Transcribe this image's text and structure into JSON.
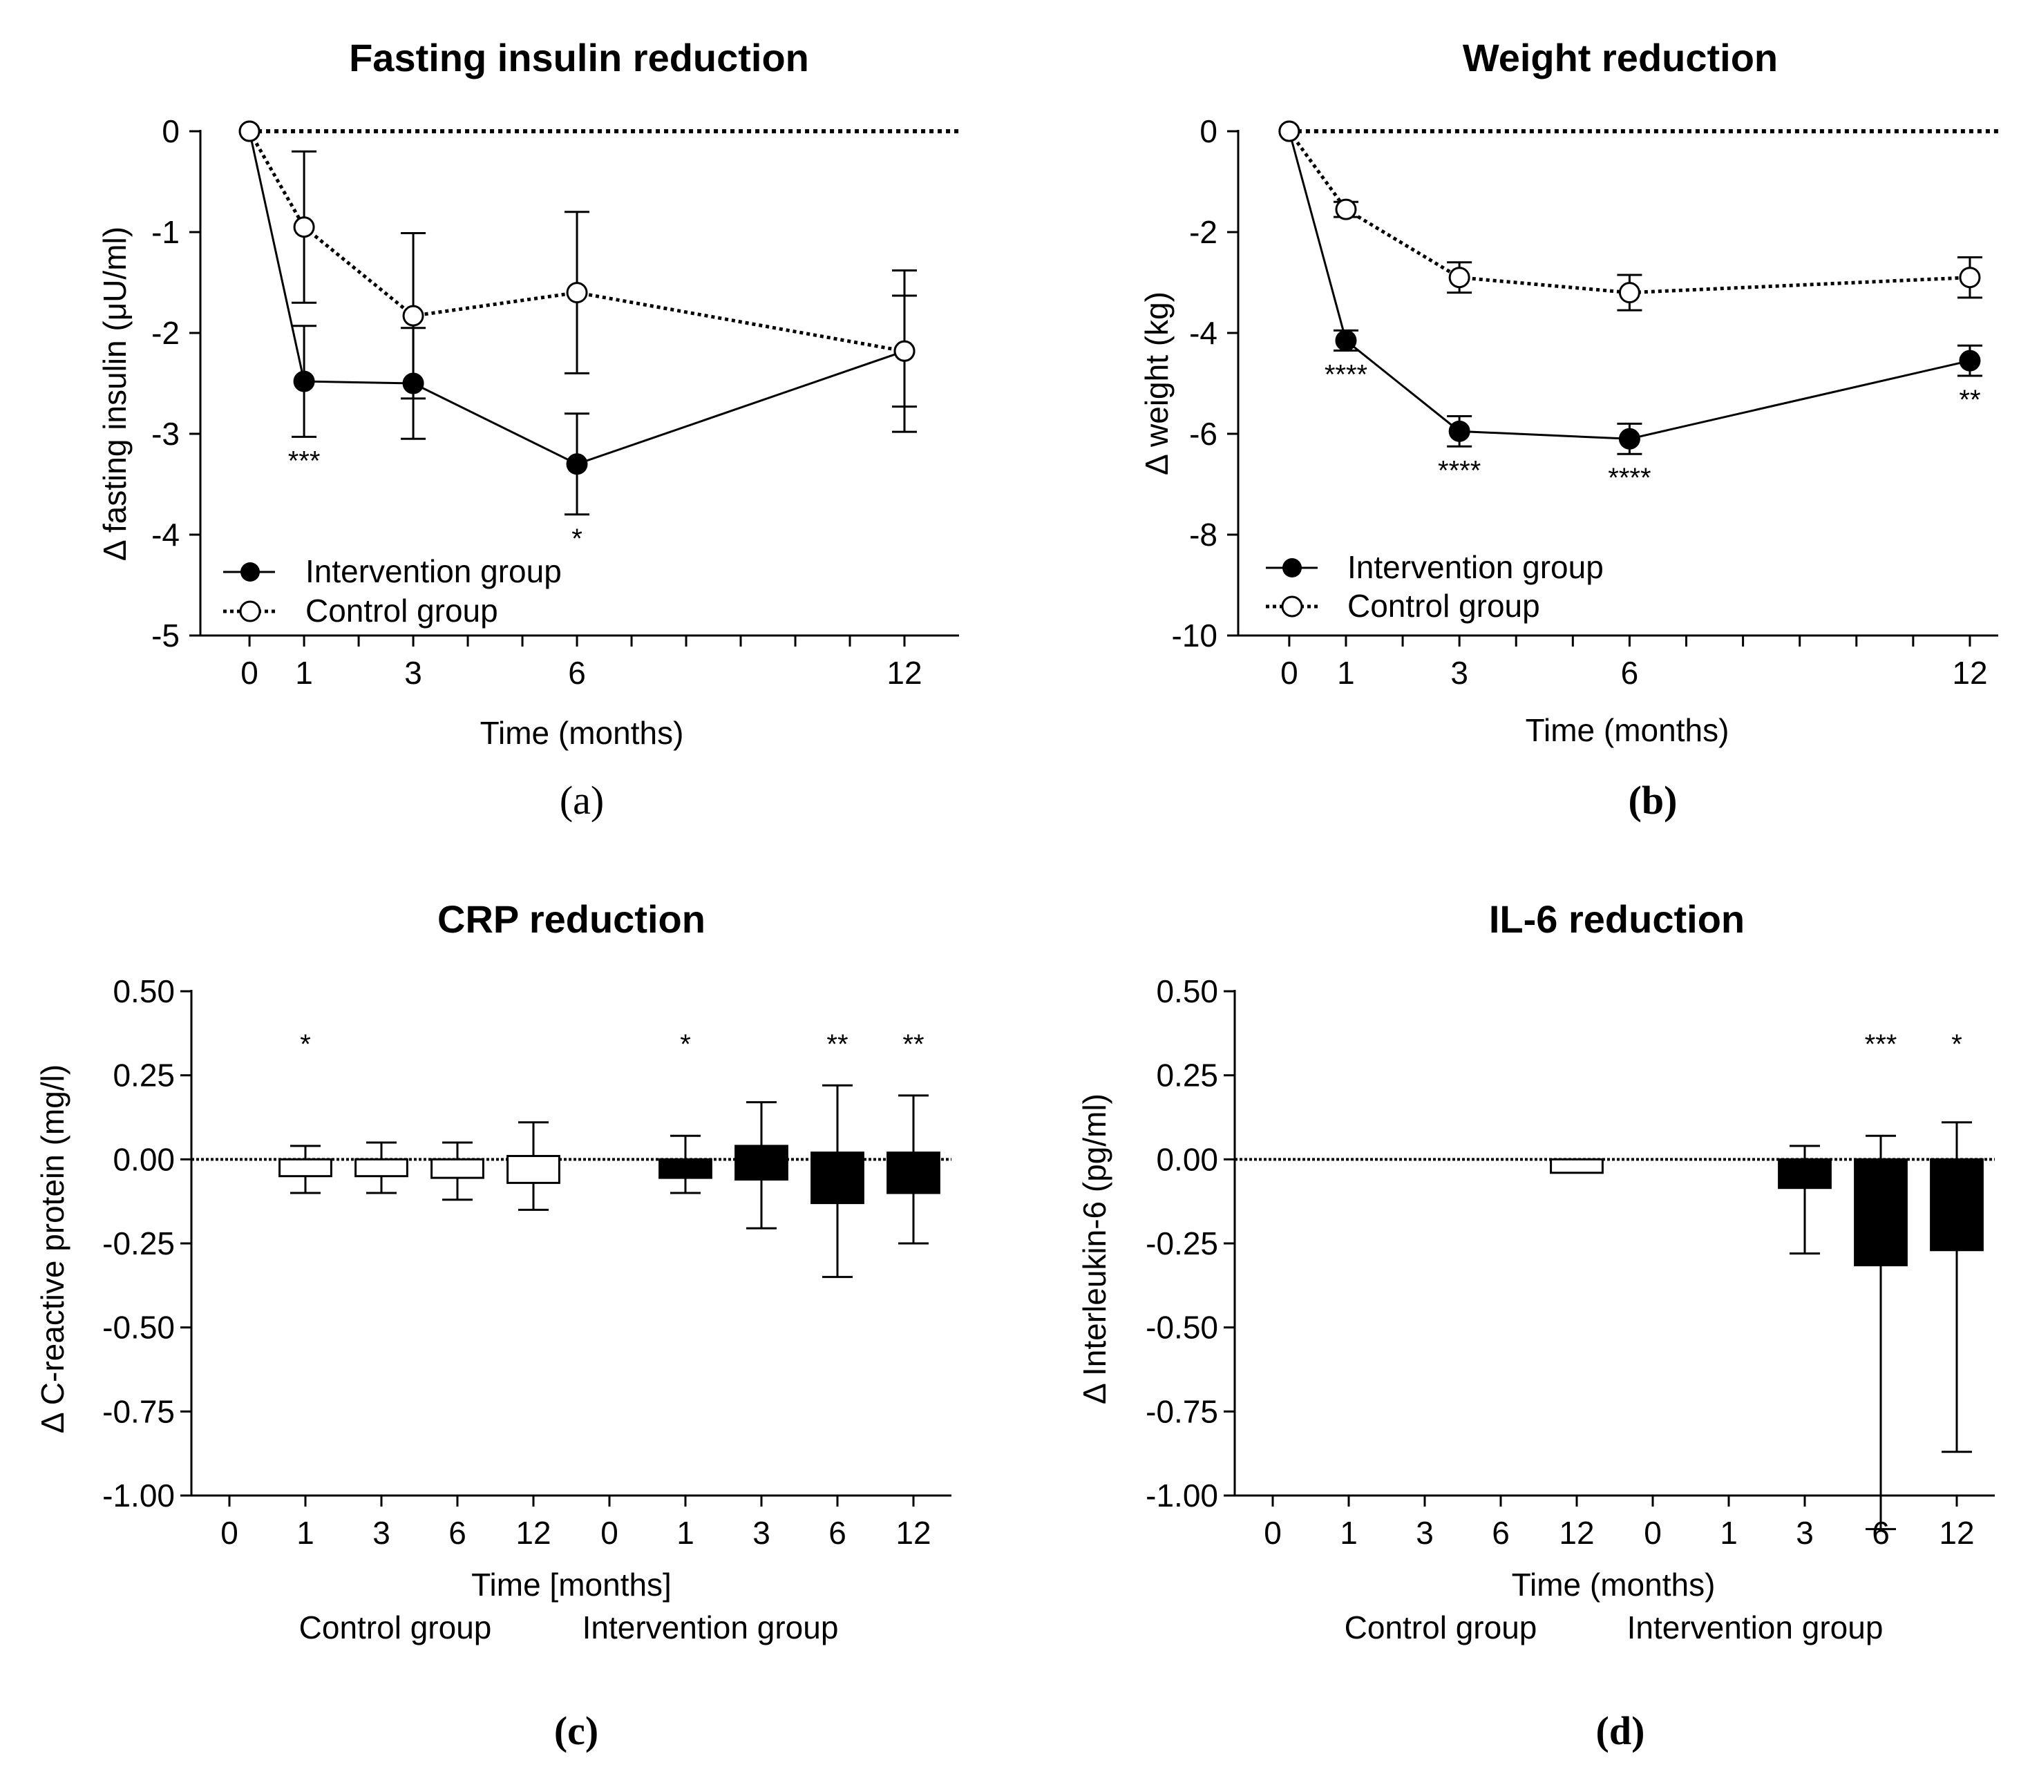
{
  "colors": {
    "ink": "#000000",
    "paper": "#ffffff"
  },
  "chart_data": [
    {
      "id": "a",
      "type": "line",
      "title": "Fasting insulin reduction",
      "xlabel": "Time (months)",
      "ylabel": "Δ fasting insulin (μU/ml)",
      "panel_label": "(a)",
      "xlim": [
        -0.9,
        13
      ],
      "ylim": [
        -5,
        0
      ],
      "xticks": [
        0,
        1,
        3,
        6,
        12
      ],
      "xminor": [
        0,
        1,
        2,
        3,
        4,
        5,
        6,
        7,
        8,
        9,
        10,
        11,
        12
      ],
      "yticks": [
        0,
        -1,
        -2,
        -3,
        -4,
        -5
      ],
      "ytick_labels": [
        "0",
        "-1",
        "-2",
        "-3",
        "-4",
        "-5"
      ],
      "reference_line": 0,
      "legend": [
        "Intervention group",
        "Control group"
      ],
      "series": [
        {
          "name": "Intervention group",
          "x": [
            0,
            1,
            3,
            6,
            12
          ],
          "y": [
            0,
            -2.48,
            -2.5,
            -3.3,
            -2.18
          ],
          "err": [
            0,
            0.55,
            0.55,
            0.5,
            0.55
          ],
          "sig": [
            "",
            "***",
            "",
            "*",
            ""
          ]
        },
        {
          "name": "Control group",
          "x": [
            0,
            1,
            3,
            6,
            12
          ],
          "y": [
            0,
            -0.95,
            -1.83,
            -1.6,
            -2.18
          ],
          "err": [
            0,
            0.75,
            0.82,
            0.8,
            0.8
          ],
          "sig": [
            "",
            "",
            "",
            "",
            ""
          ]
        }
      ]
    },
    {
      "id": "b",
      "type": "line",
      "title": "Weight reduction",
      "xlabel": "Time (months)",
      "ylabel": "Δ weight (kg)",
      "panel_label": "(b)",
      "xlim": [
        -0.9,
        12.5
      ],
      "ylim": [
        -10,
        0
      ],
      "xticks": [
        0,
        1,
        3,
        6,
        12
      ],
      "xminor": [
        0,
        1,
        2,
        3,
        4,
        5,
        6,
        7,
        8,
        9,
        10,
        11,
        12
      ],
      "yticks": [
        0,
        -2,
        -4,
        -6,
        -8,
        -10
      ],
      "ytick_labels": [
        "0",
        "-2",
        "-4",
        "-6",
        "-8",
        "-10"
      ],
      "reference_line": 0,
      "legend": [
        "Intervention group",
        "Control group"
      ],
      "series": [
        {
          "name": "Intervention group",
          "x": [
            0,
            1,
            3,
            6,
            12
          ],
          "y": [
            0,
            -4.15,
            -5.95,
            -6.1,
            -4.55
          ],
          "err": [
            0,
            0.2,
            0.3,
            0.3,
            0.3
          ],
          "sig": [
            "",
            "****",
            "****",
            "****",
            "**"
          ]
        },
        {
          "name": "Control group",
          "x": [
            0,
            1,
            3,
            6,
            12
          ],
          "y": [
            0,
            -1.55,
            -2.9,
            -3.2,
            -2.9
          ],
          "err": [
            0,
            0.15,
            0.3,
            0.35,
            0.4
          ],
          "sig": [
            "",
            "",
            "",
            "",
            ""
          ]
        }
      ]
    },
    {
      "id": "c",
      "type": "bar",
      "title": "CRP reduction",
      "xlabel": "Time [months]",
      "group_labels": [
        "Control group",
        "Intervention group"
      ],
      "ylabel": "Δ C-reactive protein (mg/l)",
      "panel_label": "(c)",
      "ylim": [
        -1,
        0.5
      ],
      "yticks": [
        0.5,
        0.25,
        0,
        -0.25,
        -0.5,
        -0.75,
        -1
      ],
      "ytick_labels": [
        "0.50",
        "0.25",
        "0.00",
        "-0.25",
        "-0.50",
        "-0.75",
        "-1.00"
      ],
      "categories": [
        "0",
        "1",
        "3",
        "6",
        "12",
        "0",
        "1",
        "3",
        "6",
        "12"
      ],
      "groups": [
        "Control group",
        "Control group",
        "Control group",
        "Control group",
        "Control group",
        "Intervention group",
        "Intervention group",
        "Intervention group",
        "Intervention group",
        "Intervention group"
      ],
      "values": [
        0,
        -0.03,
        -0.02,
        -0.03,
        -0.02,
        0,
        -0.015,
        0.025,
        -0.06,
        -0.04
      ],
      "err_low": [
        0,
        0.07,
        0.08,
        0.09,
        0.13,
        0,
        0.085,
        0.23,
        0.29,
        0.21
      ],
      "err_high": [
        0,
        0.07,
        0.07,
        0.08,
        0.13,
        0,
        0.085,
        0.145,
        0.28,
        0.23
      ],
      "box_low": [
        0,
        -0.05,
        -0.05,
        -0.055,
        -0.07,
        0,
        -0.055,
        -0.06,
        -0.13,
        -0.1
      ],
      "box_high": [
        0,
        0.0,
        0.0,
        0.0,
        0.01,
        0,
        0.0,
        0.04,
        0.02,
        0.02
      ],
      "sig": [
        "",
        "*",
        "",
        "",
        "",
        "",
        "*",
        "",
        "**",
        "**"
      ]
    },
    {
      "id": "d",
      "type": "bar",
      "title": "IL-6 reduction",
      "xlabel": "Time (months)",
      "group_labels": [
        "Control group",
        "Intervention group"
      ],
      "ylabel": "Δ Interleukin-6 (pg/ml)",
      "panel_label": "(d)",
      "ylim": [
        -1,
        0.5
      ],
      "yticks": [
        0.5,
        0.25,
        0,
        -0.25,
        -0.5,
        -0.75,
        -1
      ],
      "ytick_labels": [
        "0.50",
        "0.25",
        "0.00",
        "-0.25",
        "-0.50",
        "-0.75",
        "-1.00"
      ],
      "categories": [
        "0",
        "1",
        "3",
        "6",
        "12",
        "0",
        "1",
        "3",
        "6",
        "12"
      ],
      "groups": [
        "Control group",
        "Control group",
        "Control group",
        "Control group",
        "Control group",
        "Intervention group",
        "Intervention group",
        "Intervention group",
        "Intervention group",
        "Intervention group"
      ],
      "values": [
        0,
        0,
        0,
        0,
        -0.04,
        0,
        0,
        -0.08,
        -0.32,
        -0.27
      ],
      "err_low": [
        0,
        0,
        0,
        0,
        0,
        0,
        0,
        0.2,
        0.78,
        0.6
      ],
      "err_high": [
        0,
        0,
        0,
        0,
        0,
        0,
        0,
        0.12,
        0.39,
        0.38
      ],
      "box_low": [
        0,
        0,
        0,
        0,
        -0.04,
        0,
        0,
        -0.085,
        -0.315,
        -0.27
      ],
      "box_high": [
        0,
        0,
        0,
        0,
        0,
        0,
        0,
        0,
        0,
        0
      ],
      "sig": [
        "",
        "",
        "",
        "",
        "",
        "",
        "",
        "",
        "***",
        "*"
      ]
    }
  ]
}
